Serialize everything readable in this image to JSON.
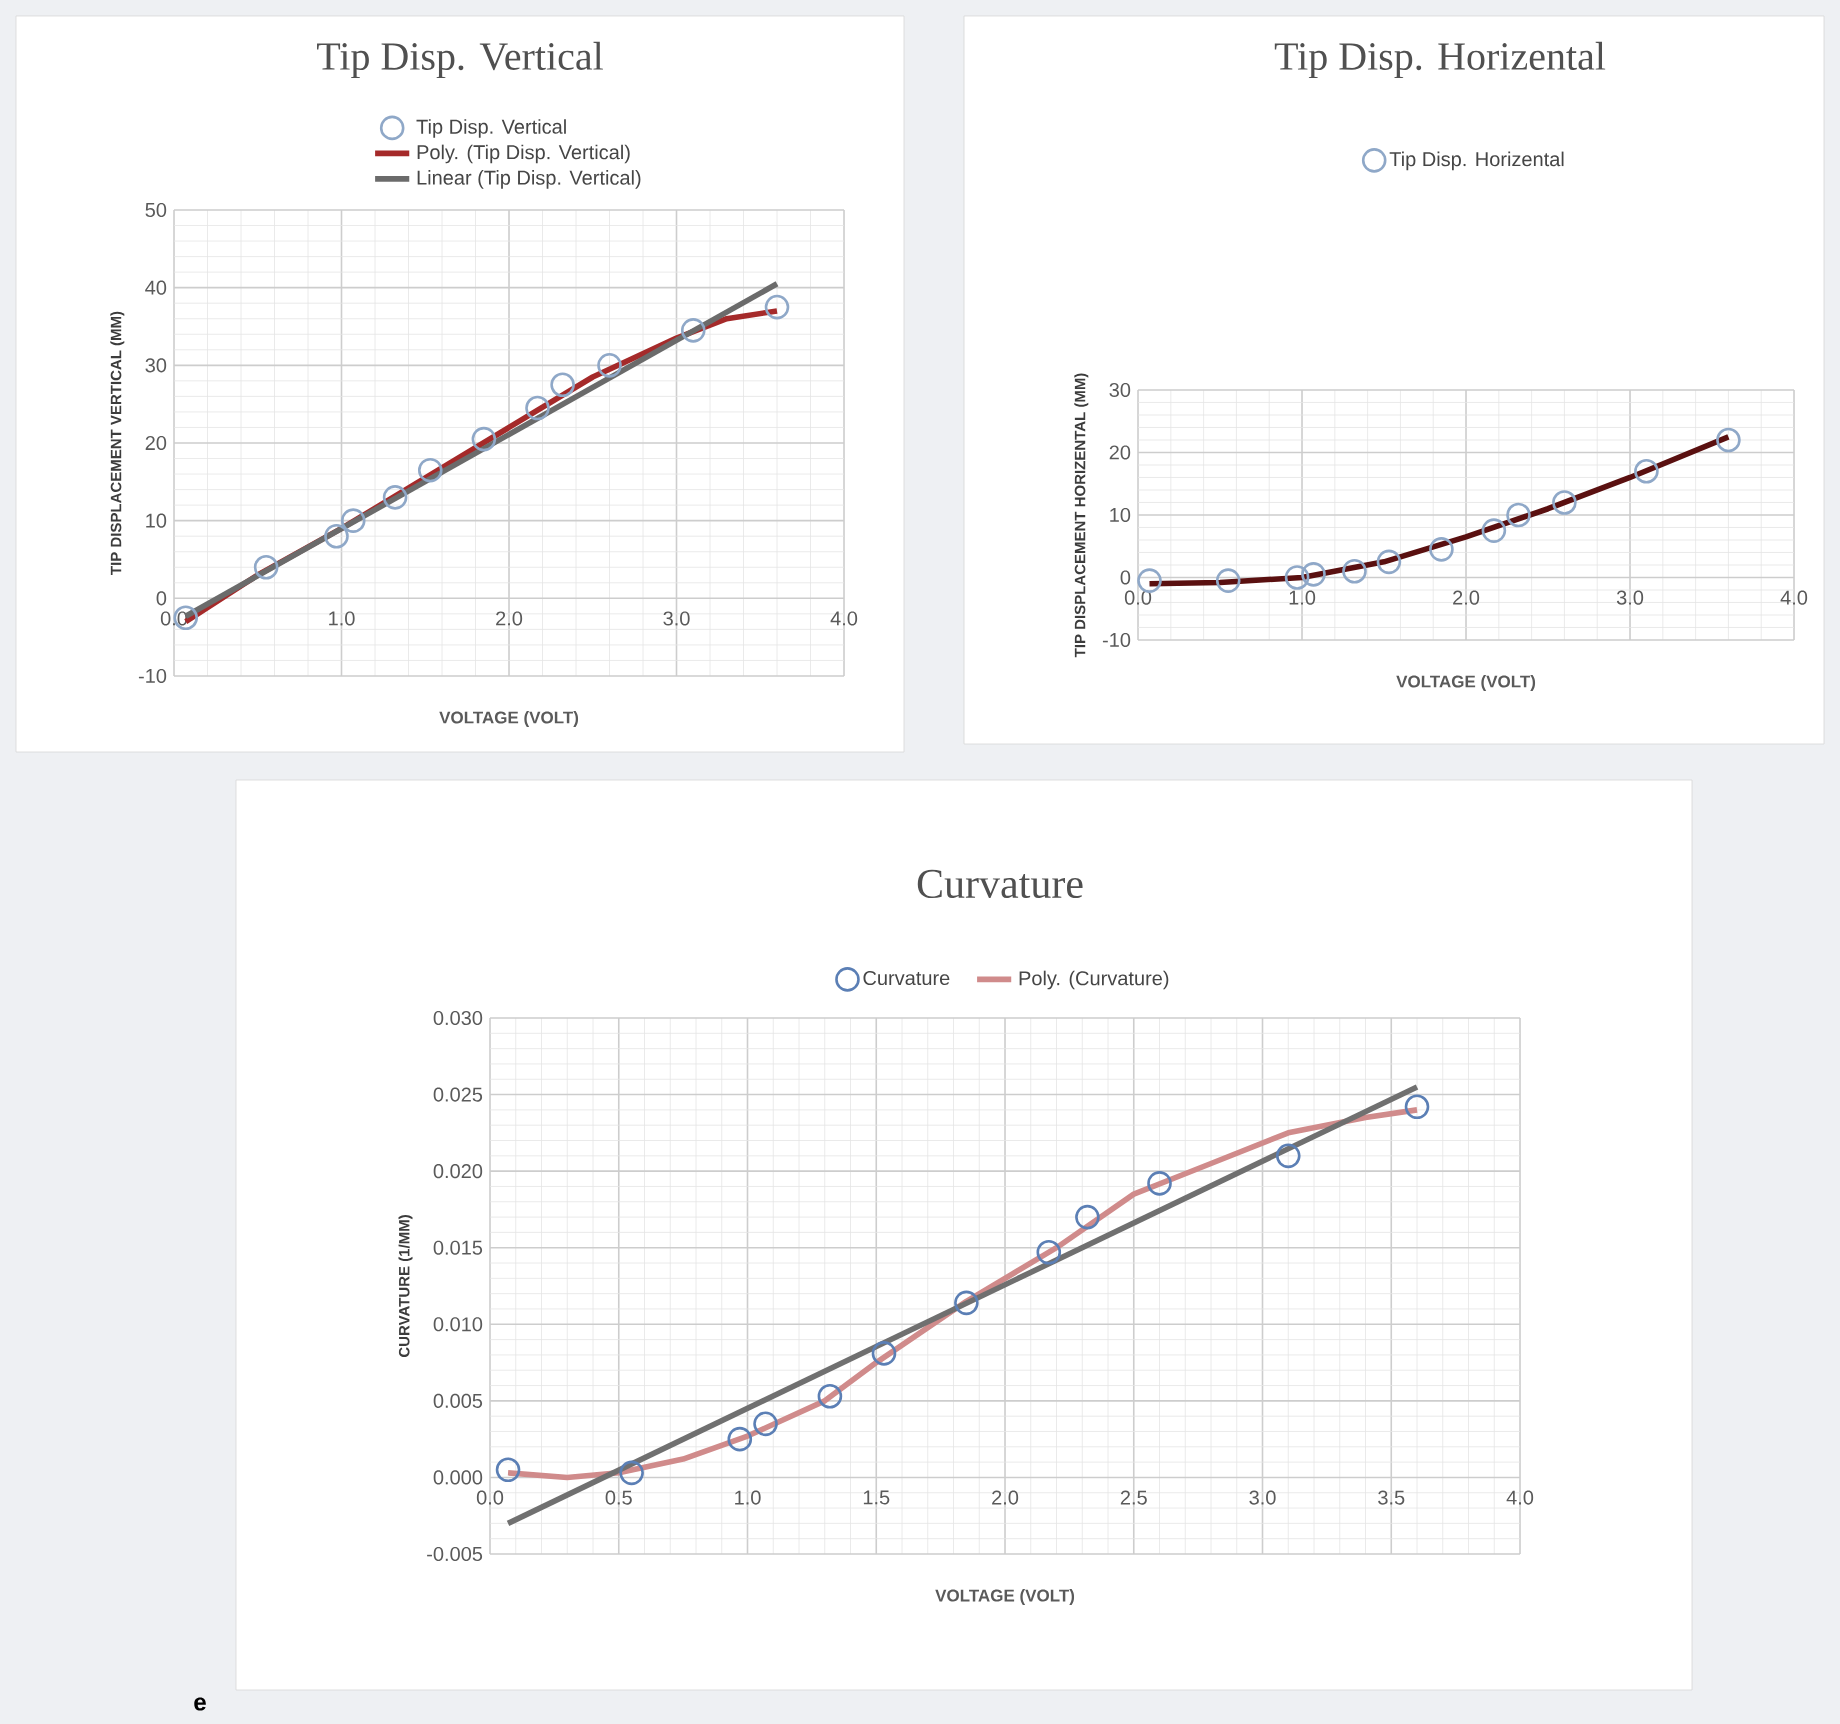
{
  "chart_data": [
    {
      "type": "scatter",
      "title": "Tip Disp. Vertical",
      "xlabel": "VOLTAGE (VOLT)",
      "ylabel": "TIP DISPLACEMENT VERTICAL (MM)",
      "xlim": [
        0,
        4
      ],
      "ylim": [
        -10,
        50
      ],
      "xticks": [
        {
          "value": 0,
          "label": "0.0"
        },
        {
          "value": 1,
          "label": "1.0"
        },
        {
          "value": 2,
          "label": "2.0"
        },
        {
          "value": 3,
          "label": "3.0"
        },
        {
          "value": 4,
          "label": "4.0"
        }
      ],
      "yticks": [
        -10,
        0,
        10,
        20,
        30,
        40,
        50
      ],
      "grid": true,
      "legend": "top",
      "series": [
        {
          "name": "Tip Disp. Vertical",
          "type": "scatter",
          "marker": "circle",
          "color": "#8fa8c8",
          "x": [
            0.07,
            0.55,
            0.97,
            1.07,
            1.32,
            1.53,
            1.85,
            2.17,
            2.32,
            2.6,
            3.1,
            3.6
          ],
          "values": [
            -2.5,
            4,
            8,
            10,
            13,
            16.5,
            20.5,
            24.5,
            27.5,
            30,
            34.5,
            37.5
          ]
        },
        {
          "name": "Poly. (Tip Disp. Vertical)",
          "type": "line",
          "color": "#a52a2a",
          "x": [
            0.07,
            0.5,
            1.0,
            1.5,
            2.0,
            2.5,
            3.0,
            3.3,
            3.6
          ],
          "values": [
            -3,
            3,
            9,
            15.5,
            22,
            28.5,
            33.5,
            36,
            37
          ]
        },
        {
          "name": "Linear (Tip Disp. Vertical)",
          "type": "line",
          "color": "#6b6b6b",
          "x": [
            0.07,
            3.6
          ],
          "values": [
            -2.3,
            40.5
          ]
        }
      ]
    },
    {
      "type": "scatter",
      "title": "Tip Disp. Horizental",
      "xlabel": "VOLTAGE (VOLT)",
      "ylabel": "TIP DISPLACEMENT HORIZENTAL (MM)",
      "xlim": [
        0,
        4
      ],
      "ylim": [
        -10,
        30
      ],
      "xticks": [
        {
          "value": 0,
          "label": "0.0"
        },
        {
          "value": 1,
          "label": "1.0"
        },
        {
          "value": 2,
          "label": "2.0"
        },
        {
          "value": 3,
          "label": "3.0"
        },
        {
          "value": 4,
          "label": "4.0"
        }
      ],
      "yticks": [
        -10,
        0,
        10,
        20,
        30
      ],
      "grid": true,
      "legend": "top",
      "series": [
        {
          "name": "Tip Disp. Horizental",
          "type": "scatter",
          "marker": "circle",
          "color": "#8fa8c8",
          "x": [
            0.07,
            0.55,
            0.97,
            1.07,
            1.32,
            1.53,
            1.85,
            2.17,
            2.32,
            2.6,
            3.1,
            3.6
          ],
          "values": [
            -0.5,
            -0.5,
            0,
            0.5,
            1,
            2.5,
            4.5,
            7.5,
            10,
            12,
            17,
            22
          ]
        },
        {
          "type": "line",
          "color": "#5a1010",
          "x": [
            0.07,
            0.5,
            1.0,
            1.5,
            2.0,
            2.5,
            3.0,
            3.6
          ],
          "values": [
            -1,
            -0.8,
            0,
            2.5,
            6.5,
            11,
            16,
            22.5
          ]
        }
      ]
    },
    {
      "type": "scatter",
      "title": "Curvature",
      "xlabel": "VOLTAGE (VOLT)",
      "ylabel": "CURVATURE (1/MM)",
      "xlim": [
        0,
        4
      ],
      "ylim": [
        -0.005,
        0.03
      ],
      "xticks": [
        {
          "value": 0,
          "label": "0.0"
        },
        {
          "value": 0.5,
          "label": "0.5"
        },
        {
          "value": 1,
          "label": "1.0"
        },
        {
          "value": 1.5,
          "label": "1.5"
        },
        {
          "value": 2,
          "label": "2.0"
        },
        {
          "value": 2.5,
          "label": "2.5"
        },
        {
          "value": 3,
          "label": "3.0"
        },
        {
          "value": 3.5,
          "label": "3.5"
        },
        {
          "value": 4,
          "label": "4.0"
        }
      ],
      "yticks": [
        {
          "value": -0.005,
          "label": "-0.005"
        },
        {
          "value": 0,
          "label": "0.000"
        },
        {
          "value": 0.005,
          "label": "0.005"
        },
        {
          "value": 0.01,
          "label": "0.010"
        },
        {
          "value": 0.015,
          "label": "0.015"
        },
        {
          "value": 0.02,
          "label": "0.020"
        },
        {
          "value": 0.025,
          "label": "0.025"
        },
        {
          "value": 0.03,
          "label": "0.030"
        }
      ],
      "grid": true,
      "legend": "top",
      "annotations": [
        "e"
      ],
      "series": [
        {
          "name": "Curvature",
          "type": "scatter",
          "marker": "circle",
          "color": "#5b7fb5",
          "x": [
            0.07,
            0.55,
            0.97,
            1.07,
            1.32,
            1.53,
            1.85,
            2.17,
            2.32,
            2.6,
            3.1,
            3.6
          ],
          "values": [
            0.0005,
            0.0003,
            0.0025,
            0.0035,
            0.0053,
            0.0081,
            0.0114,
            0.0147,
            0.017,
            0.0192,
            0.021,
            0.0242
          ]
        },
        {
          "name": "Poly. (Curvature)",
          "type": "line",
          "color": "#d08b8b",
          "x": [
            0.07,
            0.3,
            0.5,
            0.75,
            1.0,
            1.3,
            1.5,
            1.85,
            2.2,
            2.5,
            2.8,
            3.1,
            3.4,
            3.6
          ],
          "values": [
            0.0003,
            0.0,
            0.0003,
            0.0012,
            0.0027,
            0.005,
            0.0075,
            0.0115,
            0.015,
            0.0185,
            0.0205,
            0.0225,
            0.0235,
            0.024
          ]
        },
        {
          "type": "line",
          "color": "#707070",
          "x": [
            0.07,
            3.6
          ],
          "values": [
            -0.003,
            0.0255
          ]
        }
      ]
    }
  ]
}
